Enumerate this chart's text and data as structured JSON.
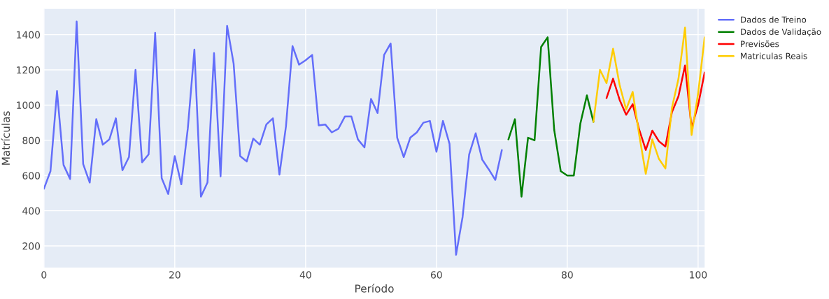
{
  "chart_data": {
    "type": "line",
    "xlabel": "Período",
    "ylabel": "Matrículas",
    "xlim": [
      0,
      101
    ],
    "ylim": [
      77,
      1546
    ],
    "xticks": [
      0,
      20,
      40,
      60,
      80,
      100
    ],
    "yticks": [
      200,
      400,
      600,
      800,
      1000,
      1200,
      1400
    ],
    "grid": true,
    "legend": "top right",
    "line_style": "solid",
    "marker": "none",
    "series": [
      {
        "name": "Dados de Treino",
        "color": "#636efa",
        "x": [
          0,
          1,
          2,
          3,
          4,
          5,
          6,
          7,
          8,
          9,
          10,
          11,
          12,
          13,
          14,
          15,
          16,
          17,
          18,
          19,
          20,
          21,
          22,
          23,
          24,
          25,
          26,
          27,
          28,
          29,
          30,
          31,
          32,
          33,
          34,
          35,
          36,
          37,
          38,
          39,
          40,
          41,
          42,
          43,
          44,
          45,
          46,
          47,
          48,
          49,
          50,
          51,
          52,
          53,
          54,
          55,
          56,
          57,
          58,
          59,
          60,
          61,
          62,
          63,
          64,
          65,
          66,
          67,
          68,
          69,
          70
        ],
        "values": [
          525,
          625,
          1080,
          660,
          580,
          1475,
          665,
          560,
          920,
          775,
          805,
          925,
          630,
          705,
          1200,
          675,
          720,
          1410,
          585,
          495,
          710,
          550,
          870,
          1315,
          480,
          560,
          1295,
          595,
          1450,
          1235,
          710,
          680,
          810,
          775,
          890,
          925,
          605,
          880,
          1335,
          1230,
          1255,
          1285,
          885,
          890,
          845,
          865,
          935,
          935,
          805,
          760,
          1035,
          955,
          1285,
          1350,
          815,
          705,
          815,
          845,
          900,
          910,
          735,
          910,
          780,
          150,
          365,
          720,
          840,
          690,
          635,
          575,
          745
        ]
      },
      {
        "name": "Dados de Validação",
        "color": "#008000",
        "x": [
          71,
          72,
          73,
          74,
          75,
          76,
          77,
          78,
          79,
          80,
          81,
          82,
          83,
          84
        ],
        "values": [
          805,
          920,
          480,
          815,
          800,
          1330,
          1385,
          860,
          625,
          600,
          600,
          895,
          1055,
          905
        ]
      },
      {
        "name": "Previsões",
        "color": "#ff0000",
        "x": [
          86,
          87,
          88,
          89,
          90,
          91,
          92,
          93,
          94,
          95,
          96,
          97,
          98,
          99,
          100,
          101
        ],
        "values": [
          1040,
          1150,
          1030,
          945,
          1005,
          860,
          745,
          855,
          795,
          765,
          960,
          1050,
          1225,
          870,
          1000,
          1185
        ]
      },
      {
        "name": "Matriculas Reais",
        "color": "#ffcc00",
        "x": [
          84,
          85,
          86,
          87,
          88,
          89,
          90,
          91,
          92,
          93,
          94,
          95,
          96,
          97,
          98,
          99,
          100,
          101
        ],
        "values": [
          905,
          1200,
          1125,
          1320,
          1115,
          975,
          1075,
          830,
          610,
          805,
          695,
          640,
          985,
          1150,
          1440,
          830,
          1065,
          1385
        ]
      }
    ]
  }
}
